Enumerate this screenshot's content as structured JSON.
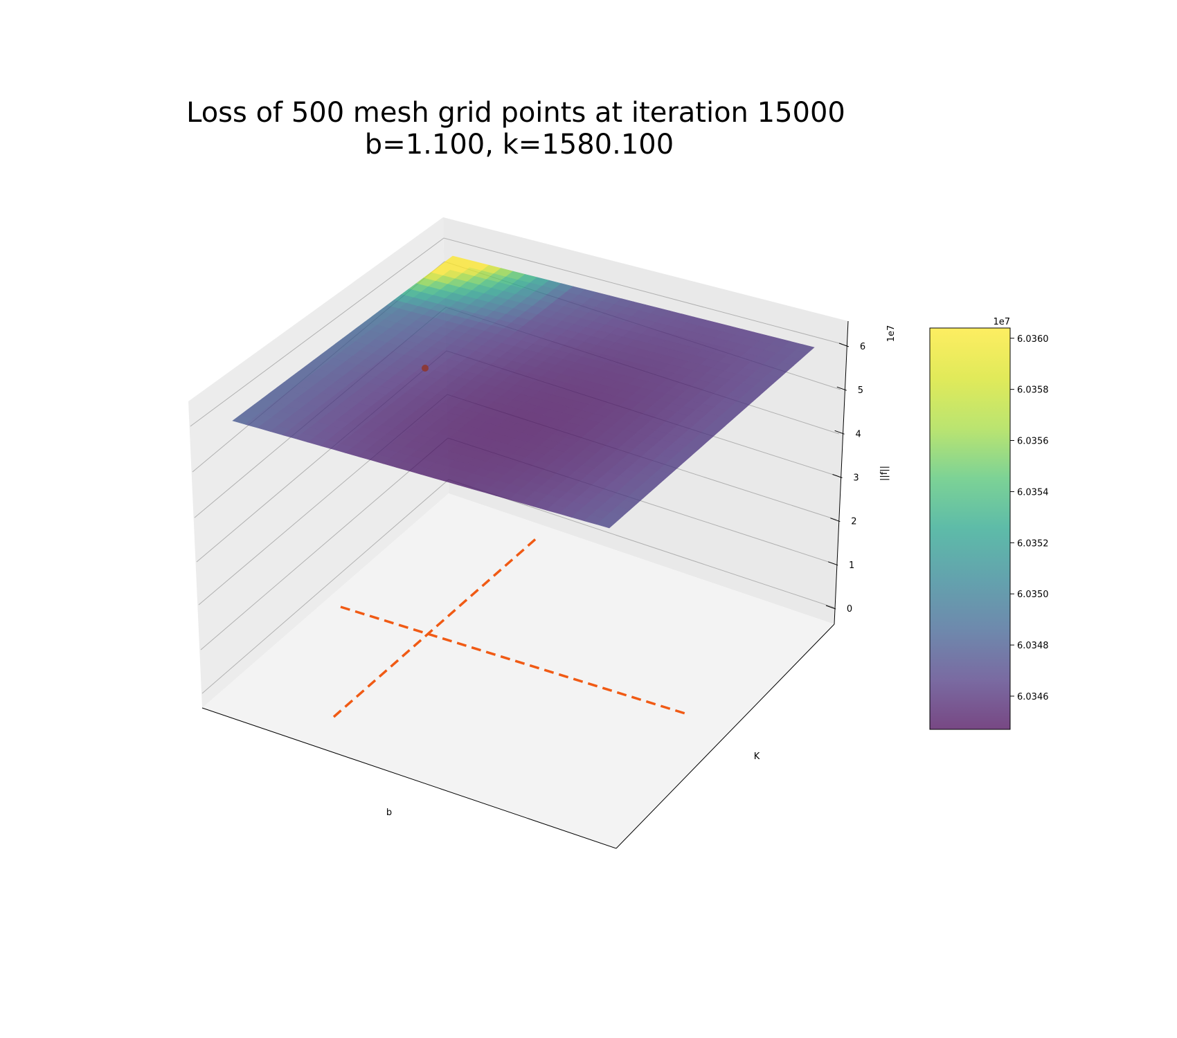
{
  "chart_data": {
    "type": "surface3d",
    "title_lines": [
      "Loss of 500 mesh grid points at iteration 15000",
      "b=1.100, k=1580.100"
    ],
    "xlabel": "b",
    "ylabel": "K",
    "zlabel": "||f||",
    "z_offset_label": "1e7",
    "z_ticks": [
      "0",
      "1",
      "2",
      "3",
      "4",
      "5",
      "6"
    ],
    "colorbar": {
      "offset_label": "1e7",
      "ticks": [
        "6.0346",
        "6.0348",
        "6.0350",
        "6.0352",
        "6.0354",
        "6.0356",
        "6.0358",
        "6.0360"
      ],
      "range": [
        6.03447,
        6.03604
      ],
      "colormap": "viridis",
      "alpha": 0.7
    },
    "surface": {
      "z_value_approx": 60350000.0,
      "min_value": 60344700.0,
      "max_value": 60360400.0,
      "shape": "bowl"
    },
    "marker_color": "#8b3a3a",
    "crosshair_color": "#f05a14",
    "crosshair_style": "dashed"
  }
}
